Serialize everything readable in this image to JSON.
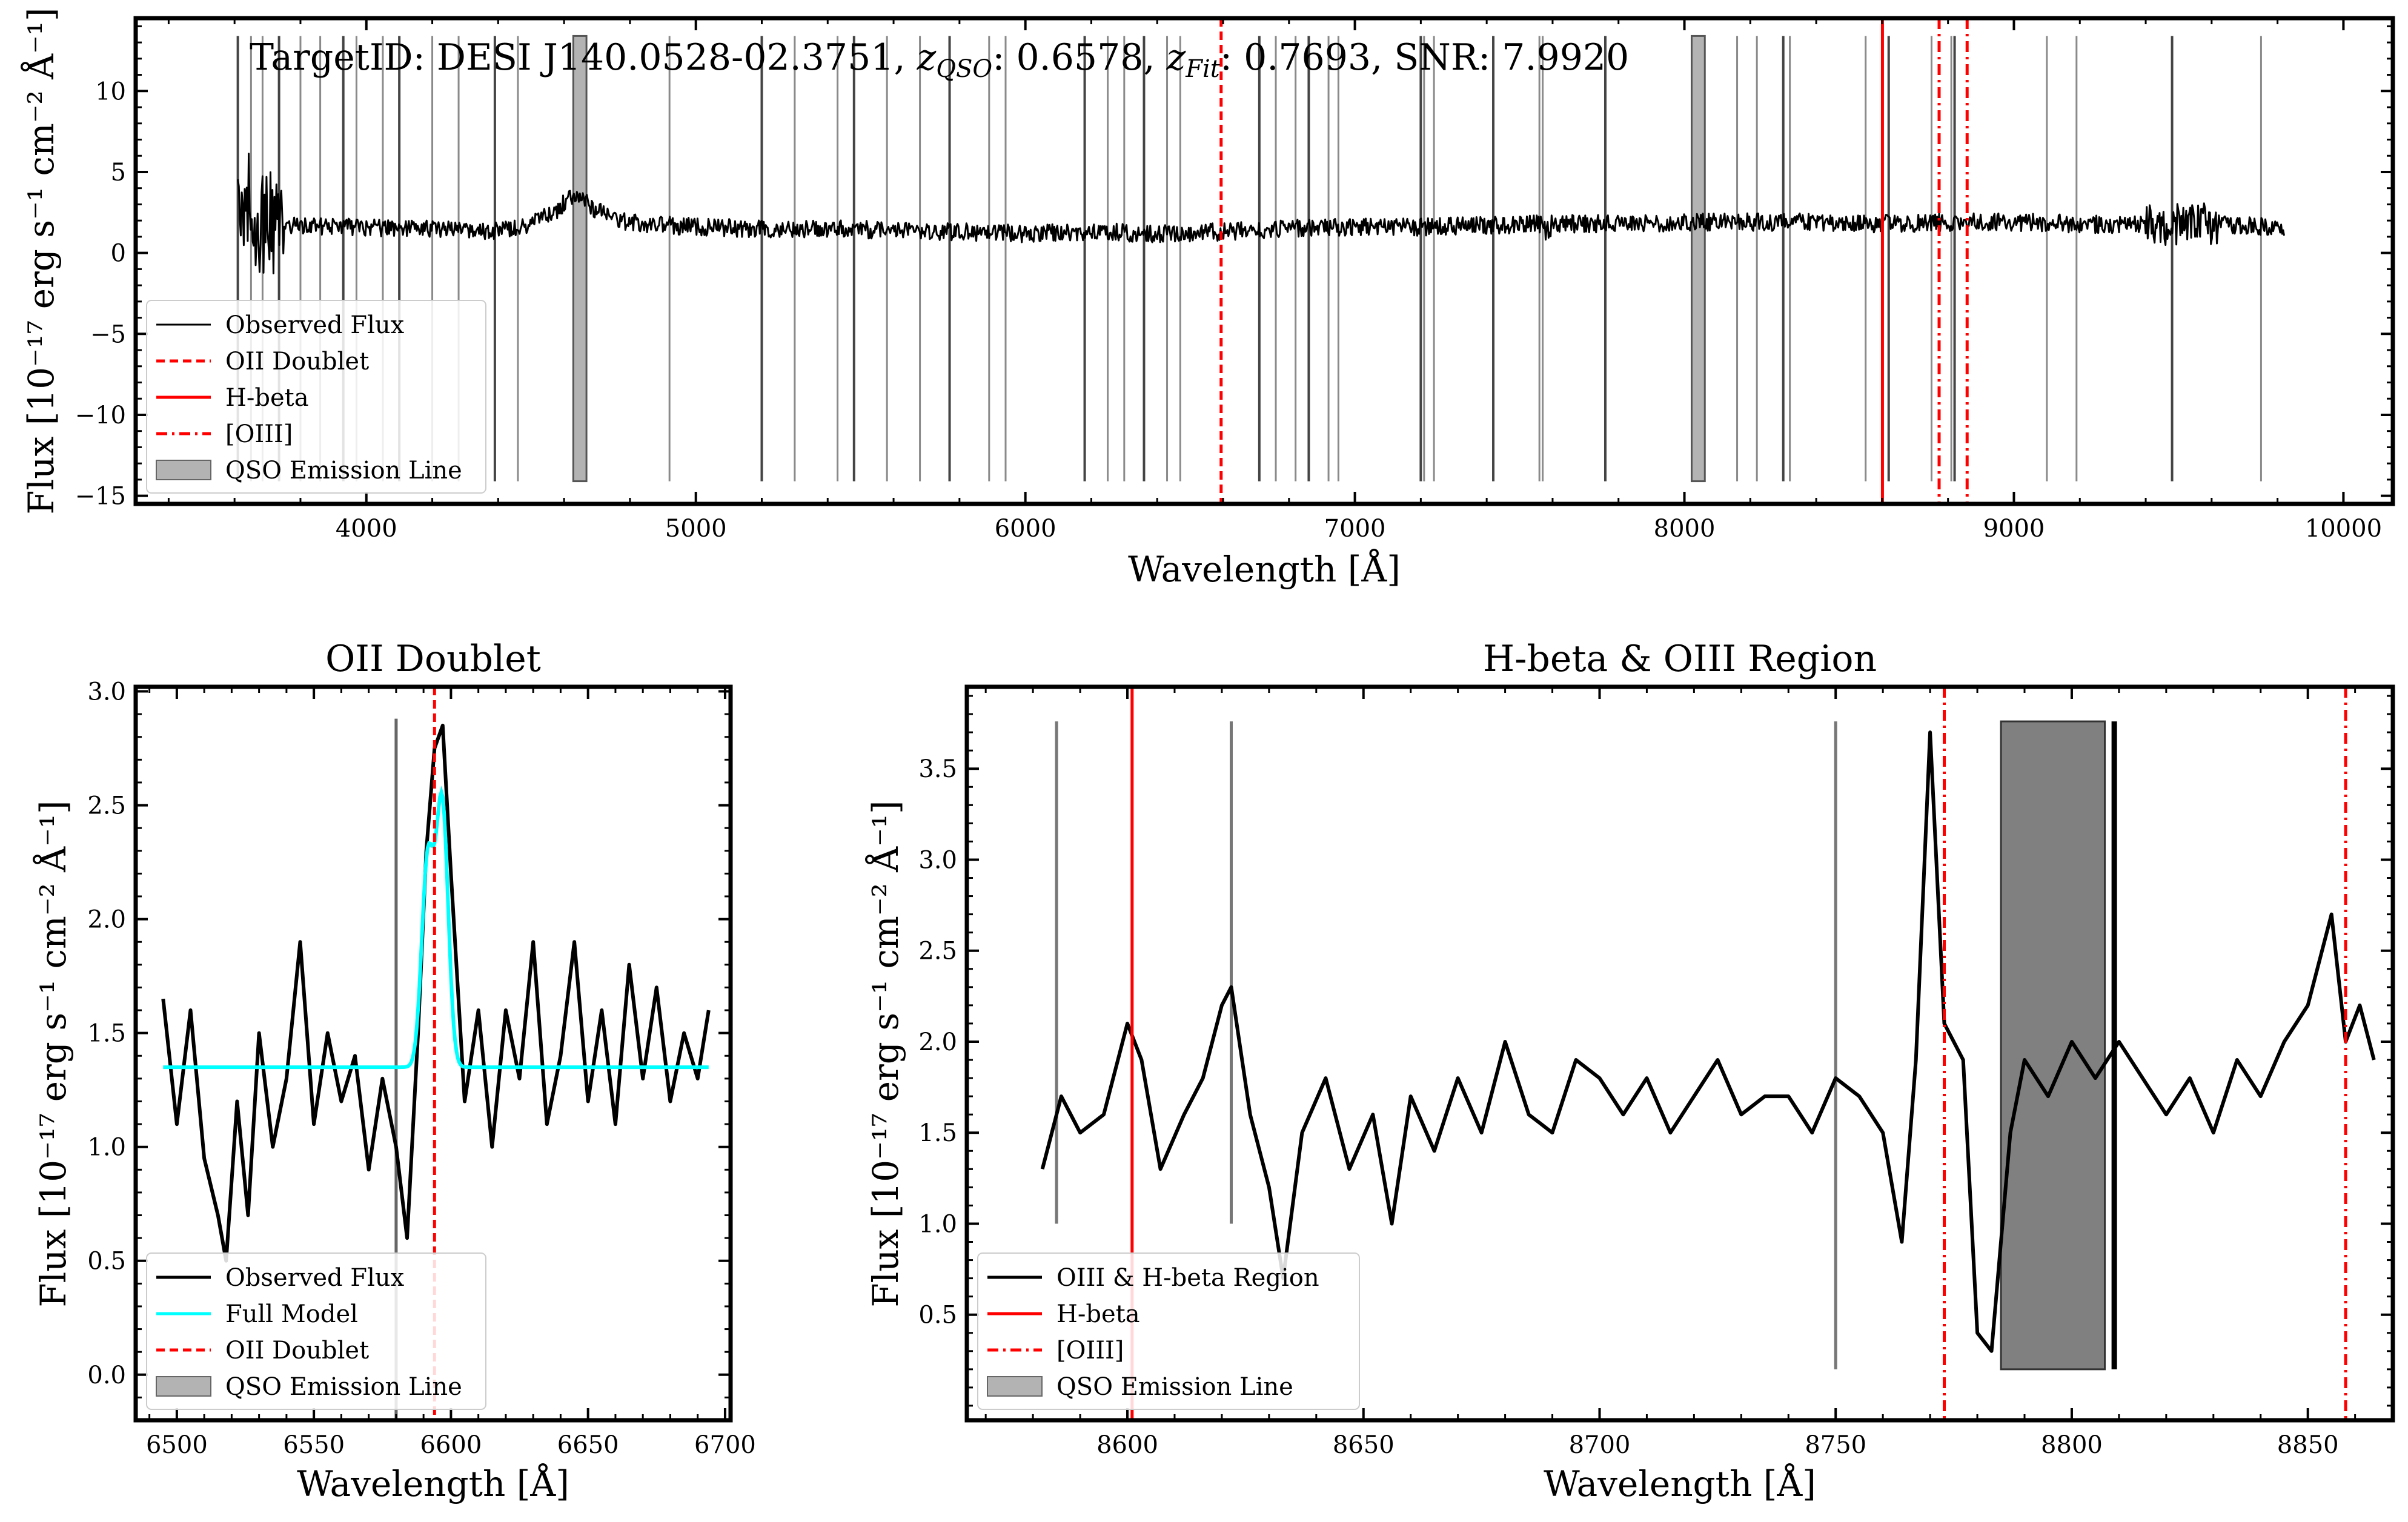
{
  "chart_data": [
    {
      "id": "top",
      "type": "line",
      "title": "",
      "annotation_prefix": "TargetID: DESI J140.0528-02.3751, ",
      "annotation_zqso_label": "z",
      "annotation_zqso_sub": "QSO",
      "annotation_zqso_value": ": 0.6578, ",
      "annotation_zfit_label": "z",
      "annotation_zfit_sub": "Fit",
      "annotation_zfit_value": ": 0.7693, SNR: 7.9920",
      "xlabel": "Wavelength [Å]",
      "ylabel": "Flux [10⁻¹⁷ erg s⁻¹ cm⁻² Å⁻¹]",
      "xlim": [
        3300,
        10150
      ],
      "ylim": [
        -15.5,
        14.5
      ],
      "xticks": [
        4000,
        5000,
        6000,
        7000,
        8000,
        9000,
        10000
      ],
      "yticks": [
        -15,
        -10,
        -5,
        0,
        5,
        10
      ],
      "legend": [
        "Observed Flux",
        "OII Doublet",
        "H-beta",
        "[OIII]",
        "QSO Emission Line"
      ],
      "legend_location": "lower-left",
      "observed_flux": {
        "x": [
          3610,
          3620,
          3640,
          3660,
          3700,
          3800,
          3900,
          4000,
          4100,
          4200,
          4300,
          4400,
          4500,
          4580,
          4620,
          4660,
          4700,
          4760,
          4850,
          5000,
          5200,
          5400,
          5600,
          5800,
          6000,
          6200,
          6400,
          6600,
          6800,
          7000,
          7200,
          7400,
          7600,
          7800,
          8000,
          8200,
          8400,
          8600,
          8800,
          9000,
          9200,
          9400,
          9500,
          9600,
          9700,
          9820
        ],
        "y": [
          1.5,
          4.5,
          3.0,
          2.0,
          1.8,
          1.7,
          1.6,
          1.6,
          1.5,
          1.5,
          1.4,
          1.4,
          1.8,
          2.6,
          3.6,
          3.3,
          2.6,
          2.0,
          1.8,
          1.6,
          1.5,
          1.5,
          1.4,
          1.3,
          1.2,
          1.3,
          1.2,
          1.3,
          1.5,
          1.6,
          1.6,
          1.7,
          1.8,
          1.8,
          1.9,
          1.9,
          1.9,
          1.8,
          1.9,
          1.9,
          1.8,
          1.7,
          1.8,
          1.8,
          1.7,
          1.6
        ]
      },
      "oii_doublet": [
        6594
      ],
      "h_beta": [
        8601
      ],
      "oiii": [
        8773,
        8858
      ],
      "qso_emission_bands": [
        [
          4628,
          4668
        ],
        [
          8022,
          8062
        ]
      ],
      "sky_lines": [
        3610,
        3650,
        3685,
        3735,
        3800,
        3860,
        3930,
        3970,
        4050,
        4100,
        4200,
        4280,
        4390,
        4460,
        4920,
        5200,
        5300,
        5430,
        5480,
        5580,
        5680,
        5770,
        5890,
        5940,
        6180,
        6250,
        6300,
        6360,
        6430,
        6470,
        6710,
        6760,
        6820,
        6860,
        6920,
        6950,
        7200,
        7210,
        7240,
        7420,
        7560,
        7570,
        7760,
        8160,
        8220,
        8300,
        8320,
        8550,
        8620,
        8750,
        8810,
        8820,
        9100,
        9190,
        9480,
        9750
      ]
    },
    {
      "id": "oii",
      "type": "line",
      "title": "OII Doublet",
      "xlabel": "Wavelength [Å]",
      "ylabel": "Flux [10⁻¹⁷ erg s⁻¹ cm⁻² Å⁻¹]",
      "xlim": [
        6485,
        6702
      ],
      "ylim": [
        -0.2,
        3.02
      ],
      "xticks": [
        6500,
        6550,
        6600,
        6650,
        6700
      ],
      "yticks": [
        0.0,
        0.5,
        1.0,
        1.5,
        2.0,
        2.5,
        3.0
      ],
      "legend": [
        "Observed Flux",
        "Full Model",
        "OII Doublet",
        "QSO Emission Line"
      ],
      "legend_location": "lower-left",
      "observed_flux": {
        "x": [
          6495,
          6500,
          6505,
          6510,
          6515,
          6518,
          6522,
          6526,
          6530,
          6535,
          6540,
          6545,
          6550,
          6555,
          6560,
          6565,
          6570,
          6575,
          6580,
          6584,
          6588,
          6591,
          6594,
          6597,
          6600,
          6605,
          6610,
          6615,
          6620,
          6625,
          6630,
          6635,
          6640,
          6645,
          6650,
          6655,
          6660,
          6665,
          6670,
          6675,
          6680,
          6685,
          6690,
          6694
        ],
        "y": [
          1.65,
          1.1,
          1.6,
          0.95,
          0.7,
          0.5,
          1.2,
          0.7,
          1.5,
          1.0,
          1.3,
          1.9,
          1.1,
          1.5,
          1.2,
          1.4,
          0.9,
          1.3,
          1.0,
          0.6,
          1.5,
          2.3,
          2.75,
          2.85,
          2.2,
          1.2,
          1.6,
          1.0,
          1.6,
          1.3,
          1.9,
          1.1,
          1.4,
          1.9,
          1.2,
          1.6,
          1.1,
          1.8,
          1.3,
          1.7,
          1.2,
          1.5,
          1.3,
          1.6
        ]
      },
      "full_model": {
        "baseline": 1.35,
        "centers": [
          6591.5,
          6596.8
        ],
        "amplitudes": [
          0.9,
          1.15
        ],
        "sigma": 2.2
      },
      "oii_doublet": [
        6594
      ],
      "sky_lines": [
        6580
      ]
    },
    {
      "id": "hb",
      "type": "line",
      "title": "H-beta & OIII Region",
      "xlabel": "Wavelength [Å]",
      "ylabel": "Flux [10⁻¹⁷ erg s⁻¹ cm⁻² Å⁻¹]",
      "xlim": [
        8566,
        8868
      ],
      "ylim": [
        -0.08,
        3.95
      ],
      "xticks": [
        8600,
        8650,
        8700,
        8750,
        8800,
        8850
      ],
      "yticks": [
        0.5,
        1.0,
        1.5,
        2.0,
        2.5,
        3.0,
        3.5
      ],
      "legend": [
        "OIII & H-beta Region",
        "H-beta",
        "[OIII]",
        "QSO Emission Line"
      ],
      "legend_location": "lower-left",
      "observed_flux": {
        "x": [
          8582,
          8586,
          8590,
          8595,
          8600,
          8603,
          8607,
          8612,
          8616,
          8620,
          8622,
          8626,
          8630,
          8633,
          8637,
          8642,
          8647,
          8652,
          8656,
          8660,
          8665,
          8670,
          8675,
          8680,
          8685,
          8690,
          8695,
          8700,
          8705,
          8710,
          8715,
          8720,
          8725,
          8730,
          8735,
          8740,
          8745,
          8750,
          8755,
          8760,
          8764,
          8767,
          8770,
          8773,
          8777,
          8780,
          8783,
          8787,
          8790,
          8795,
          8800,
          8805,
          8810,
          8815,
          8820,
          8825,
          8830,
          8835,
          8840,
          8845,
          8850,
          8855,
          8858,
          8861,
          8864
        ],
        "y": [
          1.3,
          1.7,
          1.5,
          1.6,
          2.1,
          1.9,
          1.3,
          1.6,
          1.8,
          2.2,
          2.3,
          1.6,
          1.2,
          0.7,
          1.5,
          1.8,
          1.3,
          1.6,
          1.0,
          1.7,
          1.4,
          1.8,
          1.5,
          2.0,
          1.6,
          1.5,
          1.9,
          1.8,
          1.6,
          1.8,
          1.5,
          1.7,
          1.9,
          1.6,
          1.7,
          1.7,
          1.5,
          1.8,
          1.7,
          1.5,
          0.9,
          1.9,
          3.7,
          2.1,
          1.9,
          0.4,
          0.3,
          1.5,
          1.9,
          1.7,
          2.0,
          1.8,
          2.0,
          1.8,
          1.6,
          1.8,
          1.5,
          1.9,
          1.7,
          2.0,
          2.2,
          2.7,
          2.0,
          2.2,
          1.9
        ]
      },
      "h_beta": [
        8601
      ],
      "oiii": [
        8773,
        8858
      ],
      "qso_emission_bands": [
        [
          8785,
          8807
        ]
      ],
      "sky_lines": [
        8585,
        8622,
        8750,
        8809
      ]
    }
  ],
  "colors": {
    "observed": "#000000",
    "emission_marker": "#ff0000",
    "model": "#00ffff",
    "qso_band_fill": "#808080",
    "sky_line": "#555555"
  }
}
